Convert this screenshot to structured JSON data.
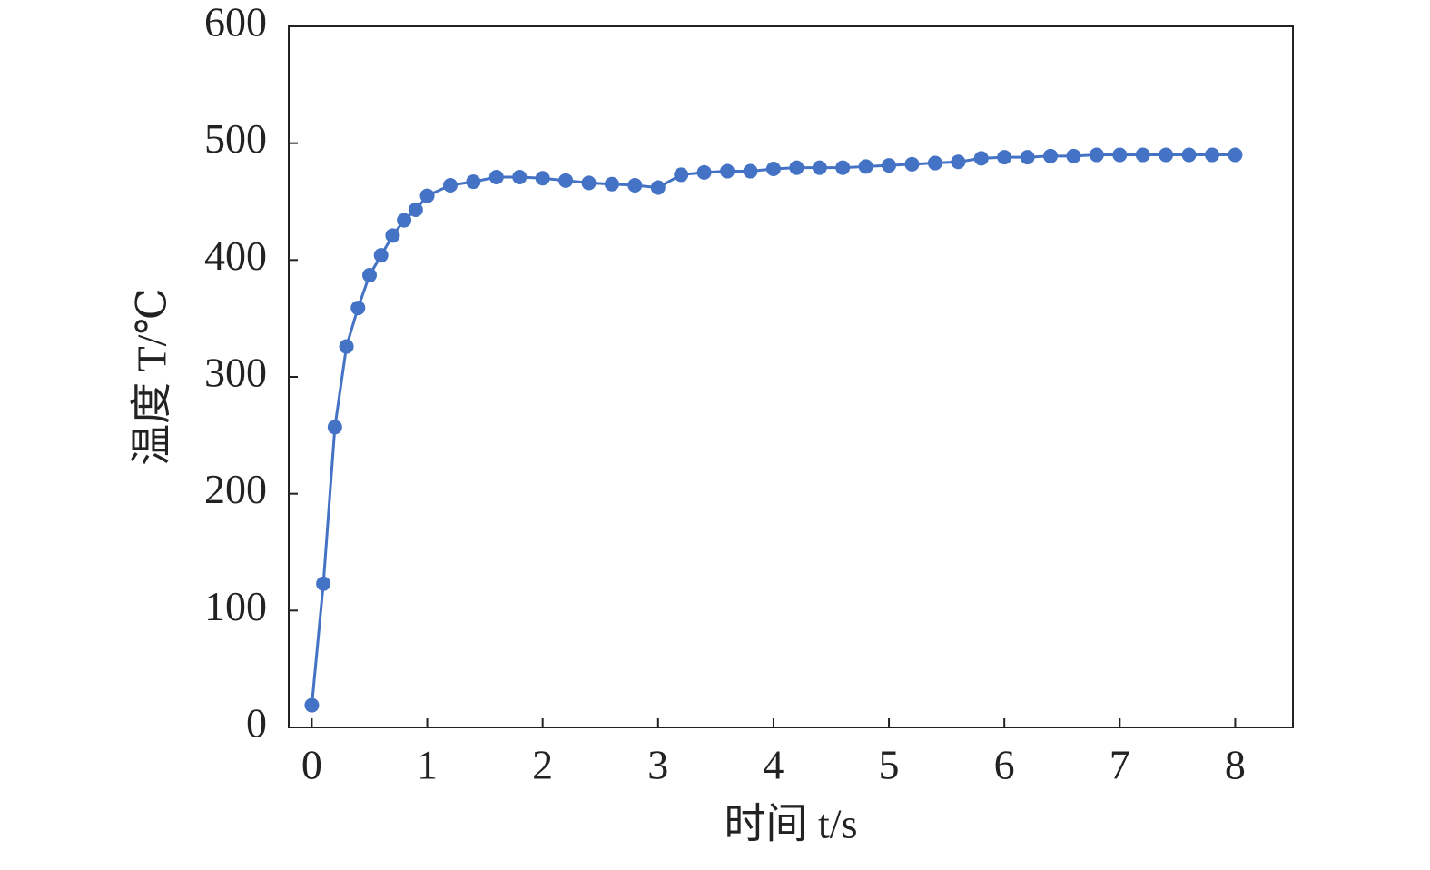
{
  "chart_data": {
    "type": "line",
    "x_label": "时间 t/s",
    "y_label": "温度 T/℃",
    "x": [
      0,
      0.1,
      0.2,
      0.3,
      0.4,
      0.5,
      0.6,
      0.7,
      0.8,
      0.9,
      1.0,
      1.2,
      1.4,
      1.6,
      1.8,
      2.0,
      2.2,
      2.4,
      2.6,
      2.8,
      3.0,
      3.2,
      3.4,
      3.6,
      3.8,
      4.0,
      4.2,
      4.4,
      4.6,
      4.8,
      5.0,
      5.2,
      5.4,
      5.6,
      5.8,
      6.0,
      6.2,
      6.4,
      6.6,
      6.8,
      7.0,
      7.2,
      7.4,
      7.6,
      7.8,
      8.0
    ],
    "series": [
      {
        "color": "#4472c4",
        "values": [
          19,
          123,
          257,
          326,
          359,
          387,
          404,
          421,
          434,
          443,
          455,
          464,
          467,
          471,
          471,
          470,
          468,
          466,
          465,
          464,
          462,
          473,
          475,
          476,
          476,
          478,
          479,
          479,
          479,
          480,
          481,
          482,
          483,
          484,
          487,
          488,
          488,
          489,
          489,
          490,
          490,
          490,
          490,
          490,
          490,
          490
        ]
      }
    ],
    "xlim": [
      -0.2,
      8.5
    ],
    "ylim": [
      0,
      600
    ],
    "xticks": [
      0,
      1,
      2,
      3,
      4,
      5,
      6,
      7,
      8
    ],
    "yticks": [
      0,
      100,
      200,
      300,
      400,
      500,
      600
    ]
  }
}
